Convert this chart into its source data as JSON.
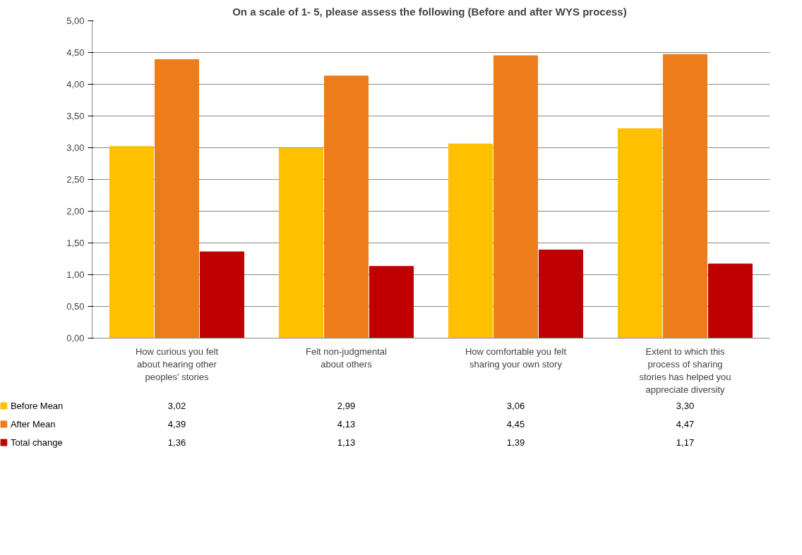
{
  "chart_data": {
    "type": "bar",
    "title": "On a scale of  1- 5, please assess the following (Before and after WYS process)",
    "categories": [
      "How curious you felt about hearing other peoples' stories",
      "Felt non-judgmental about others",
      "How comfortable you felt sharing your own story",
      "Extent to which this process of sharing stories has helped you appreciate diversity"
    ],
    "series": [
      {
        "name": "Before Mean",
        "color": "#ffc000",
        "values": [
          3.02,
          2.99,
          3.06,
          3.3
        ],
        "value_labels": [
          "3,02",
          "2,99",
          "3,06",
          "3,30"
        ]
      },
      {
        "name": "After Mean",
        "color": "#ed7d1a",
        "values": [
          4.39,
          4.13,
          4.45,
          4.47
        ],
        "value_labels": [
          "4,39",
          "4,13",
          "4,45",
          "4,47"
        ]
      },
      {
        "name": "Total change",
        "color": "#c00000",
        "values": [
          1.36,
          1.13,
          1.39,
          1.17
        ],
        "value_labels": [
          "1,36",
          "1,13",
          "1,39",
          "1,17"
        ]
      }
    ],
    "ylim": [
      0,
      5
    ],
    "yticks": [
      {
        "value": 0,
        "label": "0,00"
      },
      {
        "value": 0.5,
        "label": "0,50"
      },
      {
        "value": 1,
        "label": "1,00"
      },
      {
        "value": 1.5,
        "label": "1,50"
      },
      {
        "value": 2,
        "label": "2,00"
      },
      {
        "value": 2.5,
        "label": "2,50"
      },
      {
        "value": 3,
        "label": "3,00"
      },
      {
        "value": 3.5,
        "label": "3,50"
      },
      {
        "value": 4,
        "label": "4,00"
      },
      {
        "value": 4.5,
        "label": "4,50"
      },
      {
        "value": 5,
        "label": "5,00"
      }
    ],
    "grid": "y",
    "legend": "bottom left"
  }
}
